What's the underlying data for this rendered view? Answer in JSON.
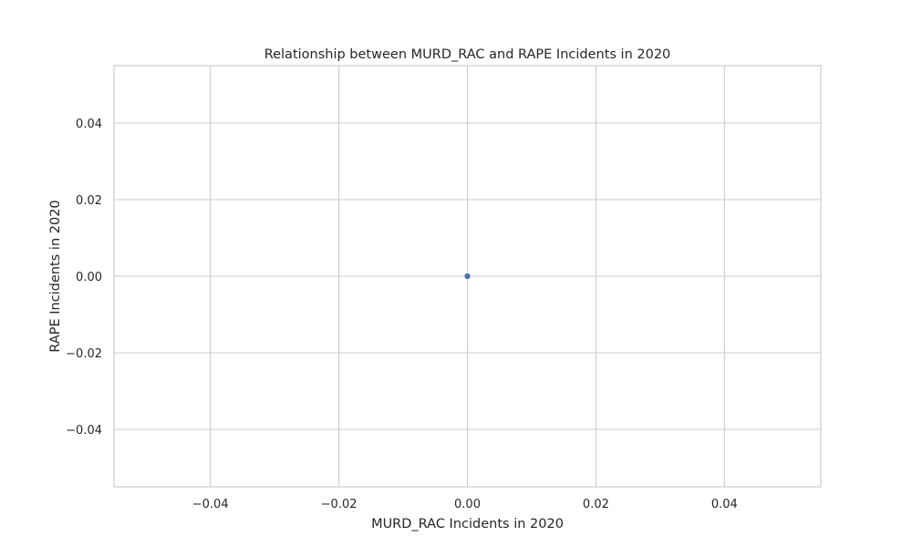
{
  "chart_data": {
    "type": "scatter",
    "title": "Relationship between MURD_RAC and RAPE Incidents in 2020",
    "xlabel": "MURD_RAC Incidents in 2020",
    "ylabel": "RAPE Incidents in 2020",
    "xlim": [
      -0.055,
      0.055
    ],
    "ylim": [
      -0.055,
      0.055
    ],
    "xticks": [
      -0.04,
      -0.02,
      0.0,
      0.02,
      0.04
    ],
    "yticks": [
      -0.04,
      -0.02,
      0.0,
      0.02,
      0.04
    ],
    "xtick_labels": [
      "−0.04",
      "−0.02",
      "0.00",
      "0.02",
      "0.04"
    ],
    "ytick_labels": [
      "−0.04",
      "−0.02",
      "0.00",
      "0.02",
      "0.04"
    ],
    "grid": true,
    "points": [
      {
        "x": 0,
        "y": 0
      }
    ],
    "colors": {
      "point": "#4c72b0",
      "grid": "#cccccc",
      "text": "#262626"
    }
  }
}
